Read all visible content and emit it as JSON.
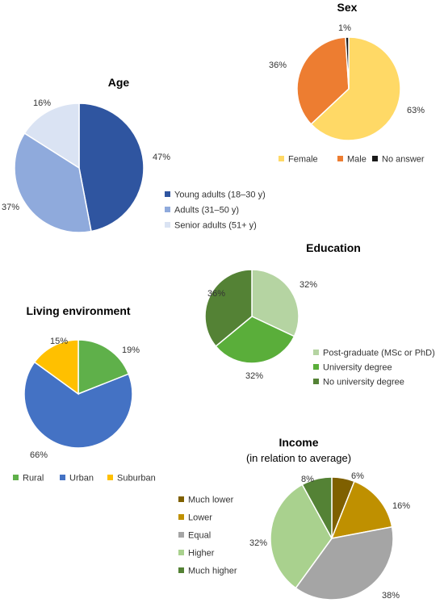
{
  "chart_data": [
    {
      "id": "age",
      "type": "pie",
      "title": "Age",
      "categories": [
        "Young adults (18–30 y)",
        "Adults (31–50 y)",
        "Senior adults (51+ y)"
      ],
      "values": [
        47,
        37,
        16
      ],
      "labels": [
        "47%",
        "37%",
        "16%"
      ],
      "colors": [
        "#2F55A0",
        "#8FAADC",
        "#DAE3F3"
      ],
      "legend": "right"
    },
    {
      "id": "sex",
      "type": "pie",
      "title": "Sex",
      "categories": [
        "Female",
        "Male",
        "No answer"
      ],
      "values": [
        63,
        36,
        1
      ],
      "labels": [
        "63%",
        "36%",
        "1%"
      ],
      "colors": [
        "#FFD966",
        "#ED7D31",
        "#1A1A1A"
      ],
      "legend": "bottom"
    },
    {
      "id": "education",
      "type": "pie",
      "title": "Education",
      "categories": [
        "Post-graduate (MSc or PhD)",
        "University degree",
        "No university degree"
      ],
      "values": [
        32,
        32,
        36
      ],
      "labels": [
        "32%",
        "32%",
        "36%"
      ],
      "colors": [
        "#B5D4A2",
        "#5AAE3A",
        "#548235"
      ],
      "legend": "right"
    },
    {
      "id": "living",
      "type": "pie",
      "title": "Living environment",
      "categories": [
        "Rural",
        "Urban",
        "Suburban"
      ],
      "values": [
        19,
        66,
        15
      ],
      "labels": [
        "19%",
        "66%",
        "15%"
      ],
      "colors": [
        "#5FB04A",
        "#4472C4",
        "#FFC000"
      ],
      "legend": "bottom"
    },
    {
      "id": "income",
      "type": "pie",
      "title": "Income",
      "subtitle": "(in relation to average)",
      "categories": [
        "Much lower",
        "Lower",
        "Equal",
        "Higher",
        "Much higher"
      ],
      "values": [
        6,
        16,
        38,
        32,
        8
      ],
      "labels": [
        "6%",
        "16%",
        "38%",
        "32%",
        "8%"
      ],
      "colors": [
        "#7F6000",
        "#BF9000",
        "#A5A5A5",
        "#A9D18E",
        "#548235"
      ],
      "legend": "left"
    }
  ]
}
